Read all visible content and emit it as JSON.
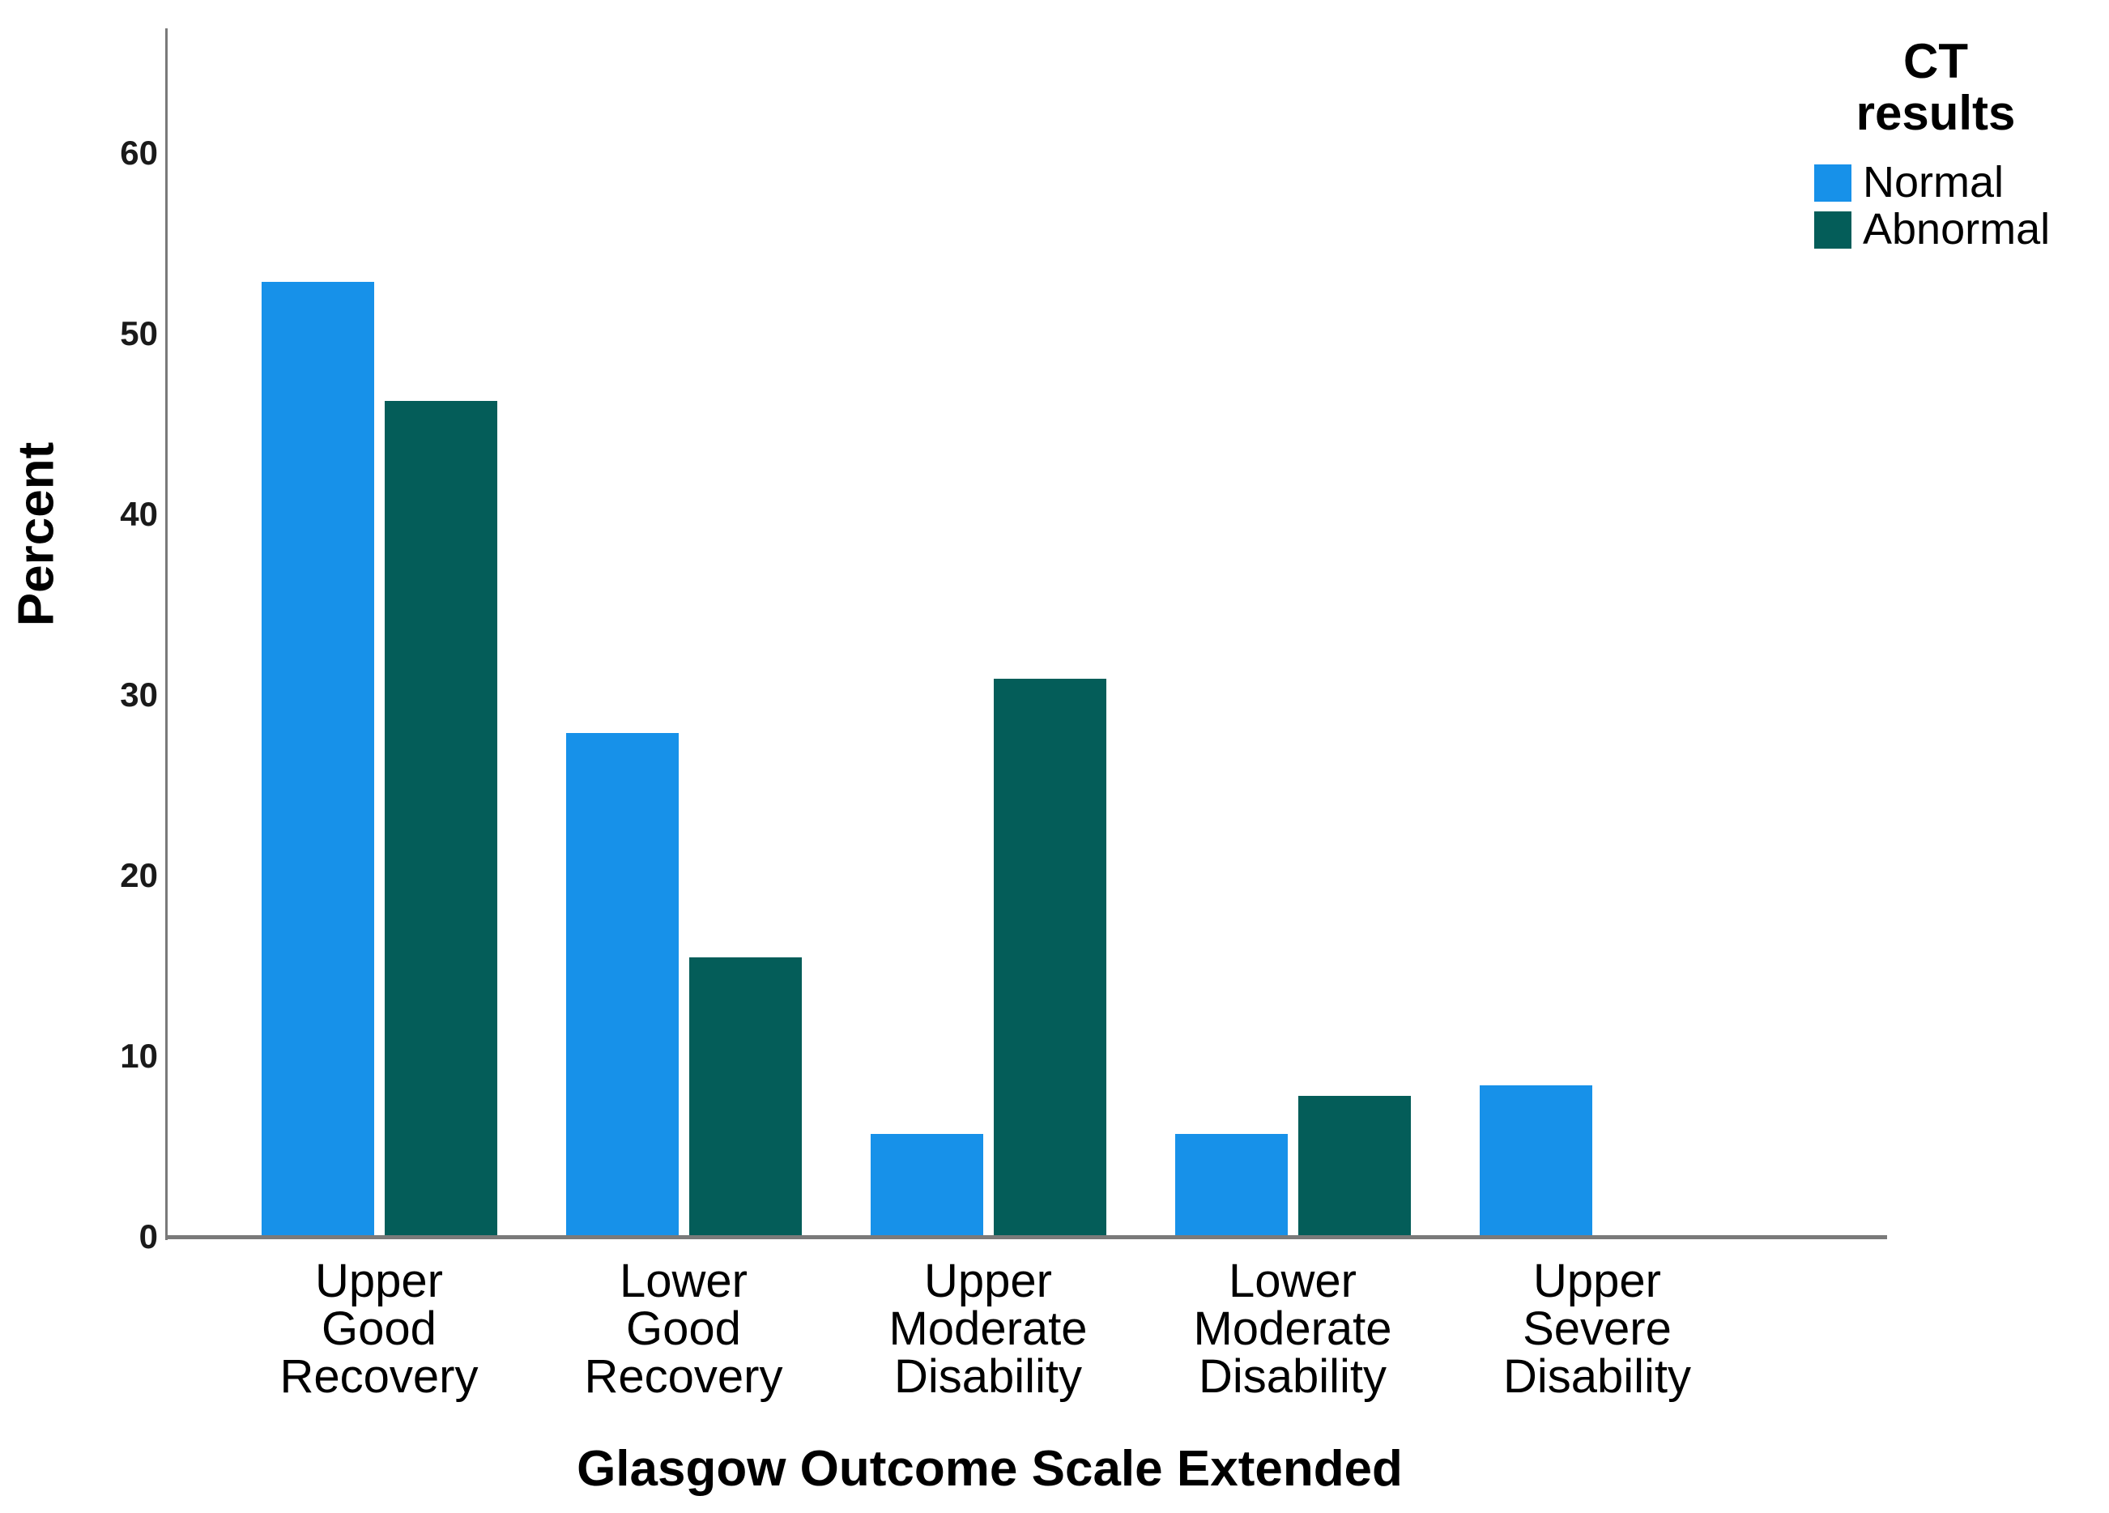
{
  "chart_data": {
    "type": "bar",
    "title": "",
    "categories": [
      "Upper\nGood\nRecovery",
      "Lower\nGood\nRecovery",
      "Upper\nModerate\nDisability",
      "Lower\nModerate\nDisability",
      "Upper\nSevere\nDisability"
    ],
    "series": [
      {
        "name": "Normal",
        "color": "#1791E9",
        "values": [
          52.8,
          27.8,
          5.6,
          5.6,
          8.3
        ]
      },
      {
        "name": "Abnormal",
        "color": "#045D59",
        "values": [
          46.2,
          15.4,
          30.8,
          7.7,
          0
        ]
      }
    ],
    "xlabel": "Glasgow Outcome Scale Extended",
    "ylabel": "Percent",
    "yticks": [
      0,
      10,
      20,
      30,
      40,
      50,
      60
    ],
    "ylim": [
      0,
      66.9
    ],
    "grid": false,
    "legend_title": "CT\nresults",
    "legend_position": "top-right",
    "colors": {
      "background": "#ffffff",
      "axis_line": "#7a7a7a",
      "tick_text": "#1a1a1a",
      "label_text": "#000000"
    }
  }
}
